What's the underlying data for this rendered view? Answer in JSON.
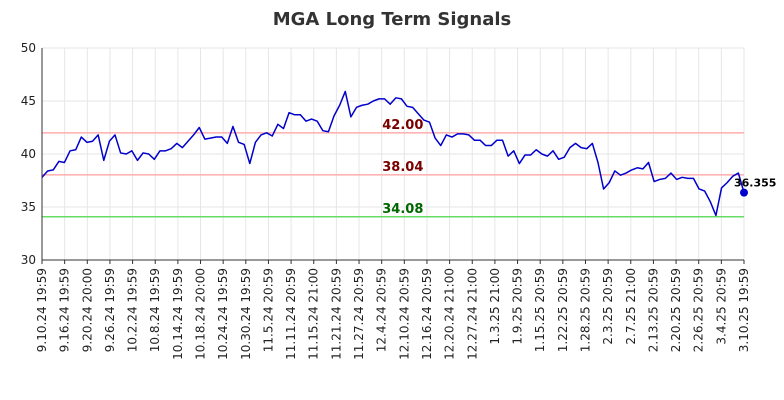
{
  "chart_data": {
    "type": "line",
    "title": "MGA Long Term Signals",
    "xlabel": "",
    "ylabel": "",
    "ylim": [
      30,
      50
    ],
    "yticks": [
      30,
      35,
      40,
      45,
      50
    ],
    "x_tick_labels": [
      "9.10.24 19:59",
      "9.16.24 19:59",
      "9.20.24 20:00",
      "9.26.24 19:59",
      "10.2.24 19:59",
      "10.8.24 19:59",
      "10.14.24 19:59",
      "10.18.24 20:00",
      "10.24.24 19:59",
      "10.30.24 19:59",
      "11.5.24 20:59",
      "11.11.24 20:59",
      "11.15.24 21:00",
      "11.21.24 20:59",
      "11.27.24 20:59",
      "12.4.24 20:59",
      "12.10.24 20:59",
      "12.16.24 20:59",
      "12.20.24 21:00",
      "12.27.24 21:00",
      "1.3.25 21:00",
      "1.9.25 20:59",
      "1.15.25 20:59",
      "1.22.25 20:59",
      "1.28.25 20:59",
      "2.3.25 20:59",
      "2.7.25 21:00",
      "2.13.25 20:59",
      "2.20.25 20:59",
      "2.26.25 20:59",
      "3.4.25 20:59",
      "3.10.25 19:59"
    ],
    "grid": true,
    "series": [
      {
        "color": "#0000cc",
        "values": [
          37.8,
          38.4,
          38.5,
          39.3,
          39.2,
          40.3,
          40.4,
          41.6,
          41.1,
          41.2,
          41.8,
          39.4,
          41.2,
          41.8,
          40.1,
          40.0,
          40.3,
          39.4,
          40.1,
          40.0,
          39.5,
          40.3,
          40.3,
          40.5,
          41.0,
          40.6,
          41.2,
          41.8,
          42.5,
          41.4,
          41.5,
          41.6,
          41.6,
          41.0,
          42.6,
          41.1,
          40.9,
          39.1,
          41.1,
          41.8,
          42.0,
          41.7,
          42.8,
          42.4,
          43.9,
          43.7,
          43.7,
          43.1,
          43.3,
          43.1,
          42.2,
          42.1,
          43.6,
          44.6,
          45.9,
          43.5,
          44.4,
          44.6,
          44.7,
          45.0,
          45.2,
          45.2,
          44.7,
          45.3,
          45.2,
          44.5,
          44.4,
          43.8,
          43.2,
          43.0,
          41.5,
          40.8,
          41.8,
          41.6,
          41.9,
          41.9,
          41.8,
          41.3,
          41.3,
          40.8,
          40.8,
          41.3,
          41.3,
          39.8,
          40.3,
          39.1,
          39.9,
          39.9,
          40.4,
          40.0,
          39.8,
          40.3,
          39.5,
          39.7,
          40.6,
          41.0,
          40.6,
          40.5,
          41.0,
          39.2,
          36.7,
          37.3,
          38.4,
          38.0,
          38.2,
          38.5,
          38.7,
          38.6,
          39.2,
          37.4,
          37.6,
          37.7,
          38.2,
          37.6,
          37.8,
          37.7,
          37.7,
          36.7,
          36.5,
          35.5,
          34.2,
          36.8,
          37.3,
          37.9,
          38.2,
          36.355
        ]
      }
    ],
    "last_value": 36.355,
    "last_value_label": "36.355",
    "levels": [
      {
        "value": 42.0,
        "label": "42.00",
        "line_color": "#ffb3b3",
        "label_color": "#7a0000"
      },
      {
        "value": 38.04,
        "label": "38.04",
        "line_color": "#ffb3b3",
        "label_color": "#7a0000"
      },
      {
        "value": 34.08,
        "label": "34.08",
        "line_color": "#66dd66",
        "label_color": "#006600"
      }
    ]
  }
}
